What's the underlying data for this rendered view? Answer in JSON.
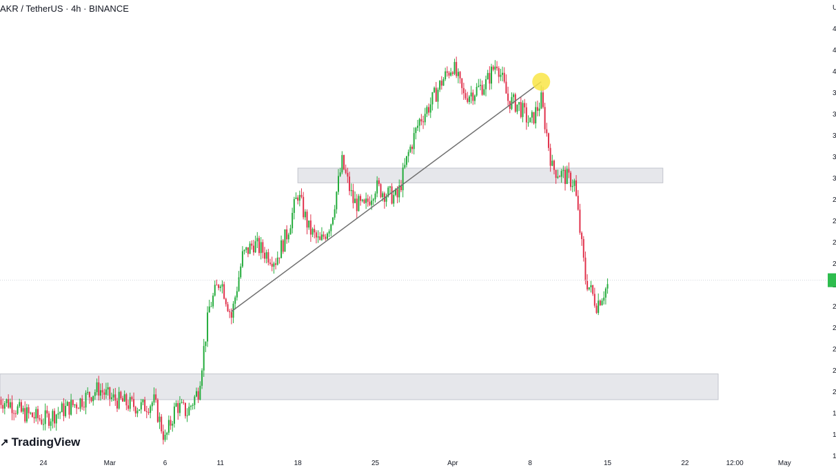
{
  "header": {
    "title": "AKR / TetherUS · 4h · BINANCE"
  },
  "branding": {
    "logo_text": "TradingView",
    "logo_icon": "tradingview-logo-icon"
  },
  "colors": {
    "up": "#26a69a",
    "down": "#ef5350",
    "up_candle": "#22ab3a",
    "down_candle": "#e0304a",
    "zone": "#e6e7eb",
    "zone_border": "#c2c4cc",
    "trendline": "#707070",
    "highlight": "#f9e547",
    "price_tag": "#2ebd4e"
  },
  "chart_data": {
    "type": "candlestick",
    "title": "AKR / TetherUS · 4h · BINANCE",
    "x_tick_labels": [
      "24",
      "Mar",
      "6",
      "11",
      "18",
      "25",
      "Apr",
      "8",
      "15",
      "22",
      "12:00",
      "May"
    ],
    "x_tick_dates": [
      "2024-02-24",
      "2024-03-01",
      "2024-03-06",
      "2024-03-11",
      "2024-03-18",
      "2024-03-25",
      "2024-04-01",
      "2024-04-08",
      "2024-04-15",
      "2024-04-22",
      "2024-04-26 12:00",
      "2024-05-01"
    ],
    "y_axis_visible_labels": [
      "U",
      "4",
      "4",
      "4",
      "3",
      "3",
      "3",
      "3",
      "3",
      "2",
      "2",
      "2",
      "2",
      "2",
      "2",
      "2",
      "2",
      "2",
      "2",
      "1",
      "1",
      "1"
    ],
    "close_path": [
      [
        "2024-02-20",
        0.12
      ],
      [
        "2024-02-21",
        0.118
      ],
      [
        "2024-02-22",
        0.113
      ],
      [
        "2024-02-23",
        0.111
      ],
      [
        "2024-02-24",
        0.109
      ],
      [
        "2024-02-25",
        0.112
      ],
      [
        "2024-02-26",
        0.115
      ],
      [
        "2024-02-27",
        0.118
      ],
      [
        "2024-02-28",
        0.122
      ],
      [
        "2024-02-29",
        0.126
      ],
      [
        "2024-03-01",
        0.121
      ],
      [
        "2024-03-02",
        0.119
      ],
      [
        "2024-03-03",
        0.117
      ],
      [
        "2024-03-04",
        0.116
      ],
      [
        "2024-03-05",
        0.119
      ],
      [
        "2024-03-06",
        0.098
      ],
      [
        "2024-03-07",
        0.117
      ],
      [
        "2024-03-08",
        0.113
      ],
      [
        "2024-03-09",
        0.125
      ],
      [
        "2024-03-10",
        0.17
      ],
      [
        "2024-03-11",
        0.186
      ],
      [
        "2024-03-12",
        0.165
      ],
      [
        "2024-03-13",
        0.198
      ],
      [
        "2024-03-14",
        0.205
      ],
      [
        "2024-03-15",
        0.2
      ],
      [
        "2024-03-16",
        0.196
      ],
      [
        "2024-03-17",
        0.21
      ],
      [
        "2024-03-18",
        0.232
      ],
      [
        "2024-03-19",
        0.213
      ],
      [
        "2024-03-20",
        0.205
      ],
      [
        "2024-03-21",
        0.217
      ],
      [
        "2024-03-22",
        0.249
      ],
      [
        "2024-03-23",
        0.228
      ],
      [
        "2024-03-24",
        0.224
      ],
      [
        "2024-03-25",
        0.236
      ],
      [
        "2024-03-26",
        0.232
      ],
      [
        "2024-03-27",
        0.23
      ],
      [
        "2024-03-28",
        0.254
      ],
      [
        "2024-03-29",
        0.272
      ],
      [
        "2024-03-30",
        0.281
      ],
      [
        "2024-03-31",
        0.293
      ],
      [
        "2024-04-01",
        0.302
      ],
      [
        "2024-04-02",
        0.285
      ],
      [
        "2024-04-03",
        0.288
      ],
      [
        "2024-04-04",
        0.292
      ],
      [
        "2024-04-05",
        0.304
      ],
      [
        "2024-04-06",
        0.283
      ],
      [
        "2024-04-07",
        0.28
      ],
      [
        "2024-04-08",
        0.27
      ],
      [
        "2024-04-09",
        0.283
      ],
      [
        "2024-04-10",
        0.246
      ],
      [
        "2024-04-11",
        0.242
      ],
      [
        "2024-04-12",
        0.238
      ],
      [
        "2024-04-13",
        0.186
      ],
      [
        "2024-04-14",
        0.172
      ],
      [
        "2024-04-15",
        0.182
      ]
    ],
    "zones": [
      {
        "y_low": 0.238,
        "y_high": 0.246,
        "from": "2024-03-18",
        "to": "2024-04-20"
      },
      {
        "y_low": 0.12,
        "y_high": 0.134,
        "from": "2024-02-20",
        "to": "2024-04-25"
      }
    ],
    "trendline": {
      "from": [
        "2024-03-12",
        0.168
      ],
      "to": [
        "2024-04-09",
        0.293
      ]
    },
    "highlight_point": [
      "2024-04-09",
      0.293
    ],
    "last_price": 0.185,
    "grid": false,
    "legend": "none"
  }
}
